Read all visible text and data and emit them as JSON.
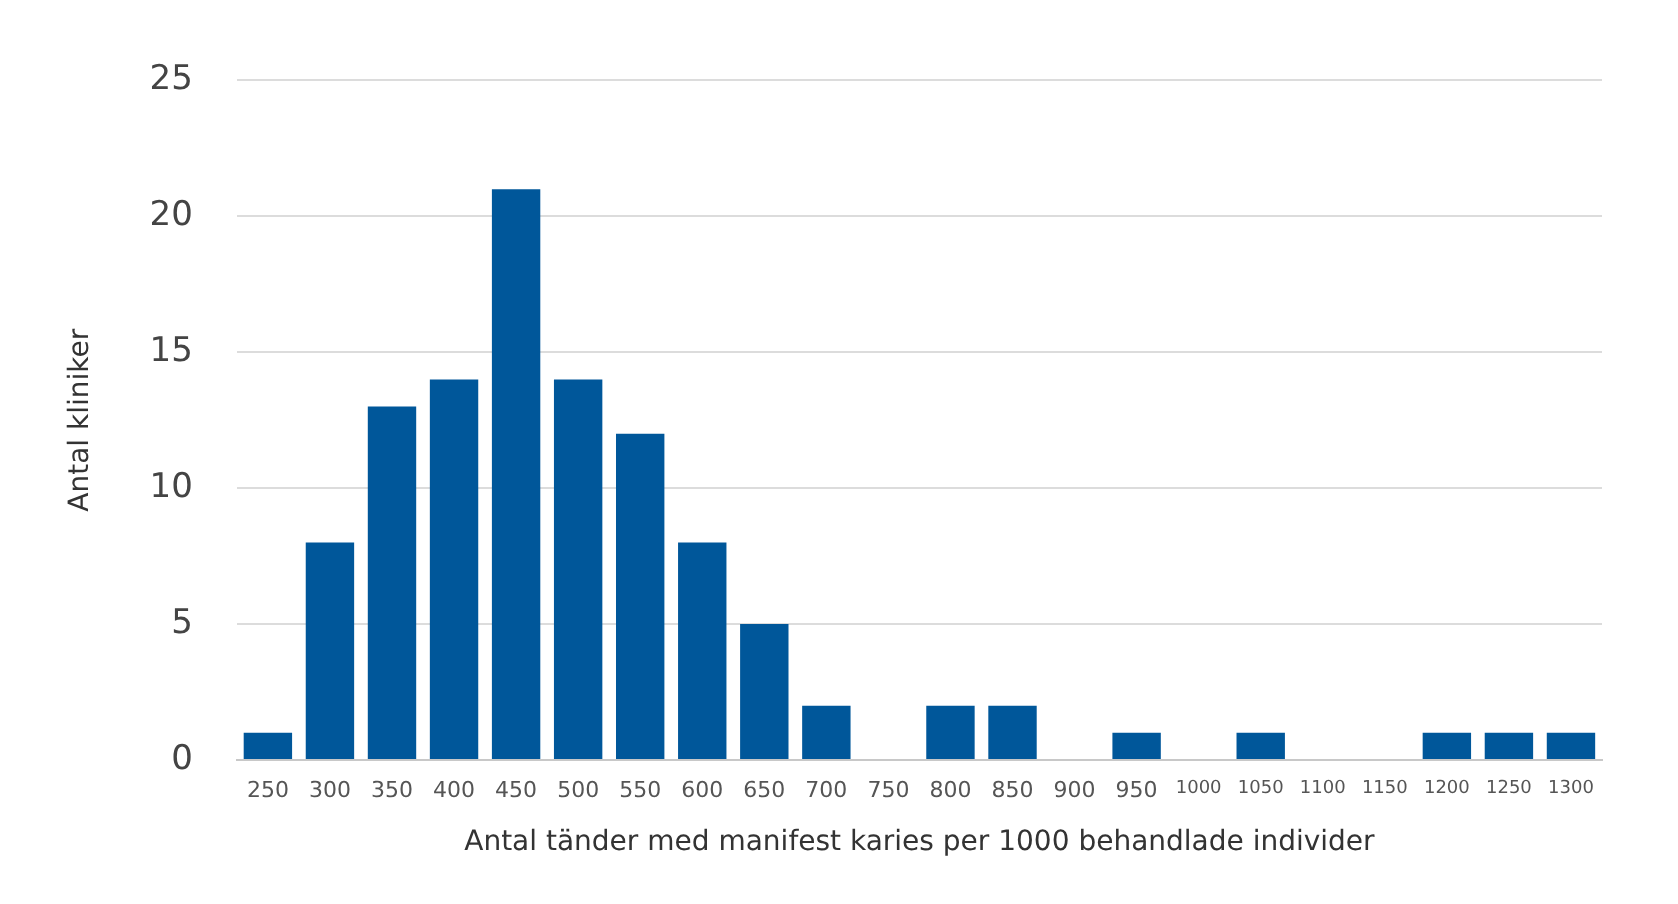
{
  "chart_data": {
    "type": "bar",
    "xlabel": "Antal tänder med manifest karies per 1000 behandlade individer",
    "ylabel": "Antal kliniker",
    "categories": [
      "250",
      "300",
      "350",
      "400",
      "450",
      "500",
      "550",
      "600",
      "650",
      "700",
      "750",
      "800",
      "850",
      "900",
      "950",
      "1000",
      "1050",
      "1100",
      "1150",
      "1200",
      "1250",
      "1300"
    ],
    "values": [
      1,
      8,
      13,
      14,
      21,
      14,
      12,
      8,
      5,
      2,
      0,
      2,
      2,
      0,
      1,
      0,
      1,
      0,
      0,
      1,
      1,
      1
    ],
    "color": "#00579a",
    "ylim": [
      0,
      25
    ],
    "yticks": [
      0,
      5,
      10,
      15,
      20,
      25
    ],
    "grid": "y",
    "legend": false
  }
}
